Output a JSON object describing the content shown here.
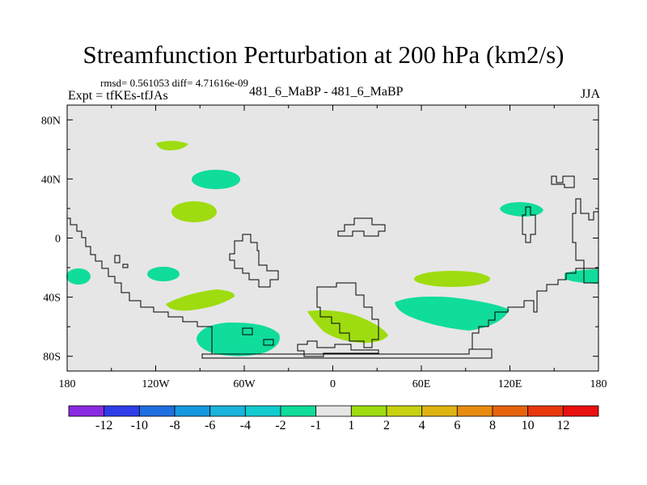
{
  "header": {
    "title": "Streamfunction Perturbation at 200 hPa (km2/s)",
    "stats": "rmsd= 0.561053 diff= 4.71616e-09",
    "experiment": "Expt = tfKEs-tfJAs",
    "runs": "481_6_MaBP - 481_6_MaBP",
    "season": "JJA"
  },
  "chart_data": {
    "type": "heatmap",
    "title": "Streamfunction Perturbation at 200 hPa (km2/s)",
    "map": "global equirectangular, 180W–180E, 90S–90N",
    "xlim": [
      -180,
      180
    ],
    "ylim": [
      -90,
      90
    ],
    "x_ticks": [
      {
        "value": -180,
        "label": "180"
      },
      {
        "value": -120,
        "label": "120W"
      },
      {
        "value": -60,
        "label": "60W"
      },
      {
        "value": 0,
        "label": "0"
      },
      {
        "value": 60,
        "label": "60E"
      },
      {
        "value": 120,
        "label": "120E"
      },
      {
        "value": 180,
        "label": "180"
      }
    ],
    "y_ticks": [
      {
        "value": 80,
        "label": "80N"
      },
      {
        "value": 40,
        "label": "40N"
      },
      {
        "value": 0,
        "label": "0"
      },
      {
        "value": -40,
        "label": "40S"
      },
      {
        "value": -80,
        "label": "80S"
      }
    ],
    "background_color": "#e6e6e6",
    "colorbar": {
      "labels": [
        "-12",
        "-10",
        "-8",
        "-6",
        "-4",
        "-2",
        "-1",
        "1",
        "2",
        "4",
        "6",
        "8",
        "10",
        "12"
      ],
      "colors": [
        "#8a2be2",
        "#2e3ee8",
        "#1f6fe0",
        "#1598e0",
        "#1ab4dc",
        "#12ccd0",
        "#10dc9c",
        "#e6e6e6",
        "#9edc10",
        "#c8d210",
        "#e0b410",
        "#e88c10",
        "#e8640c",
        "#e8380c",
        "#e81010"
      ]
    },
    "anomalies": [
      {
        "lon": -108,
        "lat": 63,
        "category": "1 to 2",
        "color": "#9edc10"
      },
      {
        "lon": -83,
        "lat": 41,
        "category": "-2 to -1",
        "color": "#10dc9c"
      },
      {
        "lon": -95,
        "lat": 18,
        "category": "1 to 2",
        "color": "#9edc10"
      },
      {
        "lon": -173,
        "lat": -25,
        "category": "-2 to -1",
        "color": "#10dc9c"
      },
      {
        "lon": -114,
        "lat": -24,
        "category": "-2 to -1",
        "color": "#10dc9c"
      },
      {
        "lon": -92,
        "lat": -42,
        "category": "1 to 2",
        "color": "#9edc10"
      },
      {
        "lon": -62,
        "lat": -70,
        "category": "-2 to -1",
        "color": "#10dc9c"
      },
      {
        "lon": 12,
        "lat": -60,
        "category": "1 to 2",
        "color": "#9edc10"
      },
      {
        "lon": 73,
        "lat": -48,
        "category": "-2 to -1",
        "color": "#10dc9c"
      },
      {
        "lon": 74,
        "lat": -27,
        "category": "1 to 2",
        "color": "#9edc10"
      },
      {
        "lon": 128,
        "lat": 20,
        "category": "-2 to -1",
        "color": "#10dc9c"
      },
      {
        "lon": 172,
        "lat": -25,
        "category": "-2 to -1",
        "color": "#10dc9c"
      }
    ]
  }
}
